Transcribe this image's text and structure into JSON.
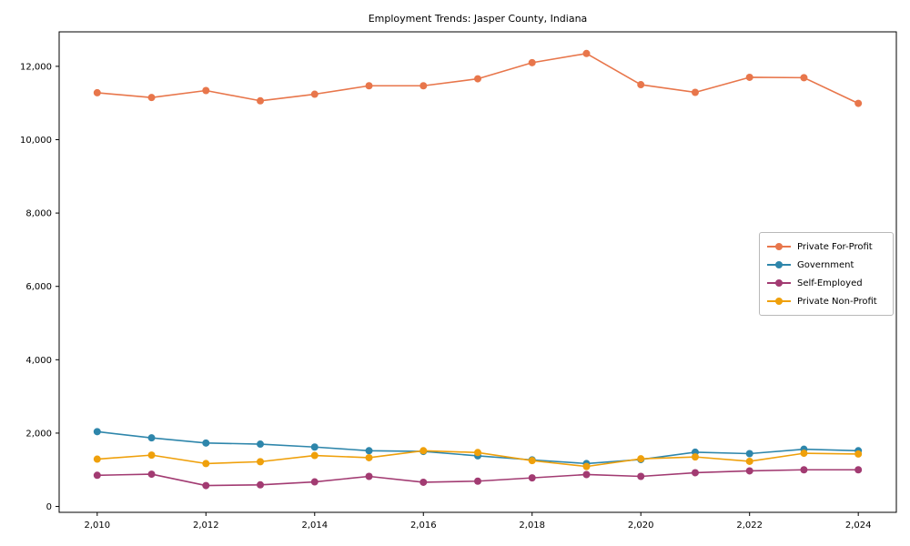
{
  "chart_data": {
    "type": "line",
    "title": "Employment Trends: Jasper County, Indiana",
    "xlabel": "",
    "ylabel": "",
    "grid": false,
    "legend_position": "center-right",
    "x": [
      2010,
      2011,
      2012,
      2013,
      2014,
      2015,
      2016,
      2017,
      2018,
      2019,
      2020,
      2021,
      2022,
      2023,
      2024
    ],
    "xticks": [
      2010,
      2012,
      2014,
      2016,
      2018,
      2020,
      2022,
      2024
    ],
    "yticks": [
      0,
      2000,
      4000,
      6000,
      8000,
      10000,
      12000
    ],
    "xlim": [
      2009.3,
      2024.7
    ],
    "ylim": [
      -160,
      12940
    ],
    "series": [
      {
        "name": "Private For-Profit",
        "color": "#E8764B",
        "values": [
          11280,
          11150,
          11340,
          11060,
          11240,
          11470,
          11470,
          11660,
          12100,
          12350,
          11500,
          11290,
          11700,
          11690,
          10990
        ]
      },
      {
        "name": "Government",
        "color": "#2E86AB",
        "values": [
          2040,
          1870,
          1730,
          1700,
          1620,
          1520,
          1500,
          1380,
          1270,
          1170,
          1280,
          1480,
          1440,
          1560,
          1520
        ]
      },
      {
        "name": "Self-Employed",
        "color": "#A23B72",
        "values": [
          850,
          880,
          570,
          590,
          670,
          820,
          660,
          690,
          780,
          870,
          820,
          920,
          970,
          1000,
          1000
        ]
      },
      {
        "name": "Private Non-Profit",
        "color": "#EFA00B",
        "values": [
          1290,
          1400,
          1170,
          1220,
          1390,
          1330,
          1520,
          1470,
          1250,
          1090,
          1300,
          1350,
          1230,
          1450,
          1430
        ]
      }
    ]
  }
}
